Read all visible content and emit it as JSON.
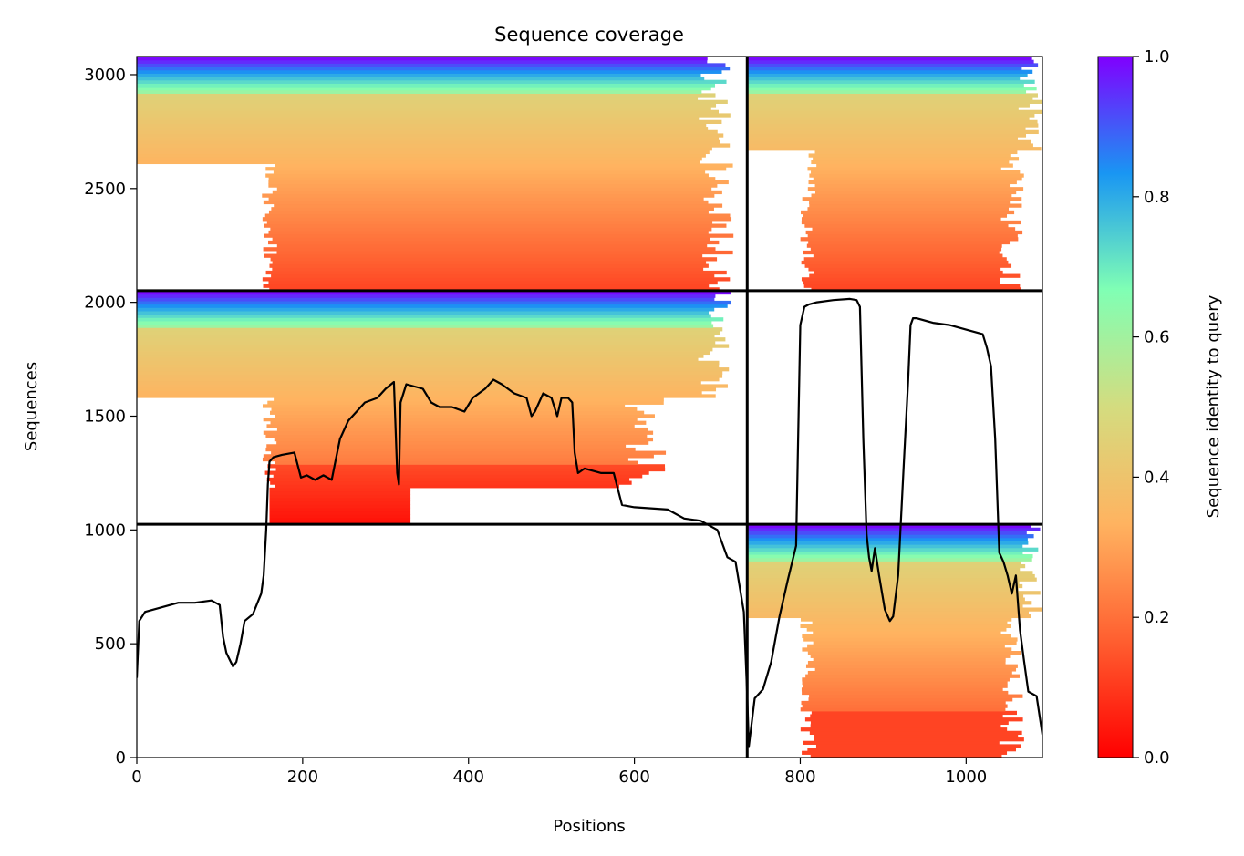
{
  "chart_data": {
    "type": "heatmap",
    "title": "Sequence coverage",
    "xlabel": "Positions",
    "ylabel": "Sequences",
    "xlim": [
      0,
      1092
    ],
    "ylim": [
      0,
      3080
    ],
    "xticks": [
      0,
      200,
      400,
      600,
      800,
      1000
    ],
    "yticks": [
      0,
      500,
      1000,
      1500,
      2000,
      2500,
      3000
    ],
    "grid": false,
    "chain_boundaries_x": [
      736
    ],
    "chain_boundaries_y": [
      1025,
      2051
    ],
    "colorbar": {
      "label": "Sequence identity to query",
      "range": [
        0,
        1
      ],
      "ticks": [
        "0.0",
        "0.2",
        "0.4",
        "0.6",
        "0.8",
        "1.0"
      ],
      "colormap": "rainbow_r",
      "colors": [
        "#ff0000",
        "#ff5f30",
        "#ffb360",
        "#d4dc7f",
        "#80ffb4",
        "#1996f3",
        "#8000ff"
      ]
    },
    "coverage_line": {
      "color": "#000000",
      "x": [
        0,
        3,
        10,
        30,
        50,
        70,
        90,
        100,
        104,
        108,
        112,
        116,
        120,
        125,
        130,
        140,
        150,
        153,
        156,
        158,
        160,
        165,
        175,
        190,
        198,
        205,
        215,
        225,
        235,
        240,
        245,
        255,
        265,
        275,
        290,
        300,
        310,
        314,
        316,
        318,
        325,
        345,
        355,
        365,
        380,
        395,
        405,
        420,
        430,
        440,
        455,
        470,
        476,
        480,
        490,
        500,
        507,
        512,
        520,
        525,
        528,
        532,
        540,
        560,
        575,
        585,
        600,
        640,
        660,
        680,
        700,
        712,
        722,
        732,
        736,
        738,
        745,
        755,
        765,
        775,
        785,
        795,
        800,
        805,
        810,
        820,
        840,
        860,
        868,
        872,
        876,
        880,
        883,
        886,
        890,
        895,
        902,
        908,
        912,
        918,
        925,
        930,
        933,
        936,
        940,
        960,
        980,
        1000,
        1010,
        1020,
        1025,
        1030,
        1035,
        1040,
        1045,
        1050,
        1055,
        1060,
        1065,
        1070,
        1075,
        1085,
        1092
      ],
      "y": [
        350,
        600,
        640,
        660,
        680,
        680,
        690,
        670,
        530,
        460,
        430,
        400,
        420,
        500,
        600,
        630,
        720,
        800,
        1000,
        1200,
        1300,
        1320,
        1330,
        1340,
        1230,
        1240,
        1220,
        1240,
        1220,
        1310,
        1400,
        1480,
        1520,
        1560,
        1580,
        1620,
        1650,
        1250,
        1200,
        1560,
        1640,
        1620,
        1560,
        1540,
        1540,
        1520,
        1580,
        1620,
        1660,
        1640,
        1600,
        1580,
        1500,
        1520,
        1600,
        1580,
        1500,
        1580,
        1580,
        1560,
        1340,
        1250,
        1270,
        1250,
        1250,
        1110,
        1100,
        1090,
        1050,
        1040,
        1000,
        880,
        860,
        640,
        270,
        50,
        260,
        300,
        420,
        620,
        780,
        930,
        1900,
        1980,
        1990,
        2000,
        2010,
        2015,
        2010,
        1980,
        1400,
        980,
        880,
        820,
        920,
        800,
        650,
        600,
        620,
        800,
        1300,
        1650,
        1900,
        1930,
        1930,
        1910,
        1900,
        1880,
        1870,
        1860,
        1800,
        1720,
        1400,
        900,
        860,
        800,
        720,
        800,
        560,
        420,
        290,
        270,
        100
      ]
    }
  }
}
